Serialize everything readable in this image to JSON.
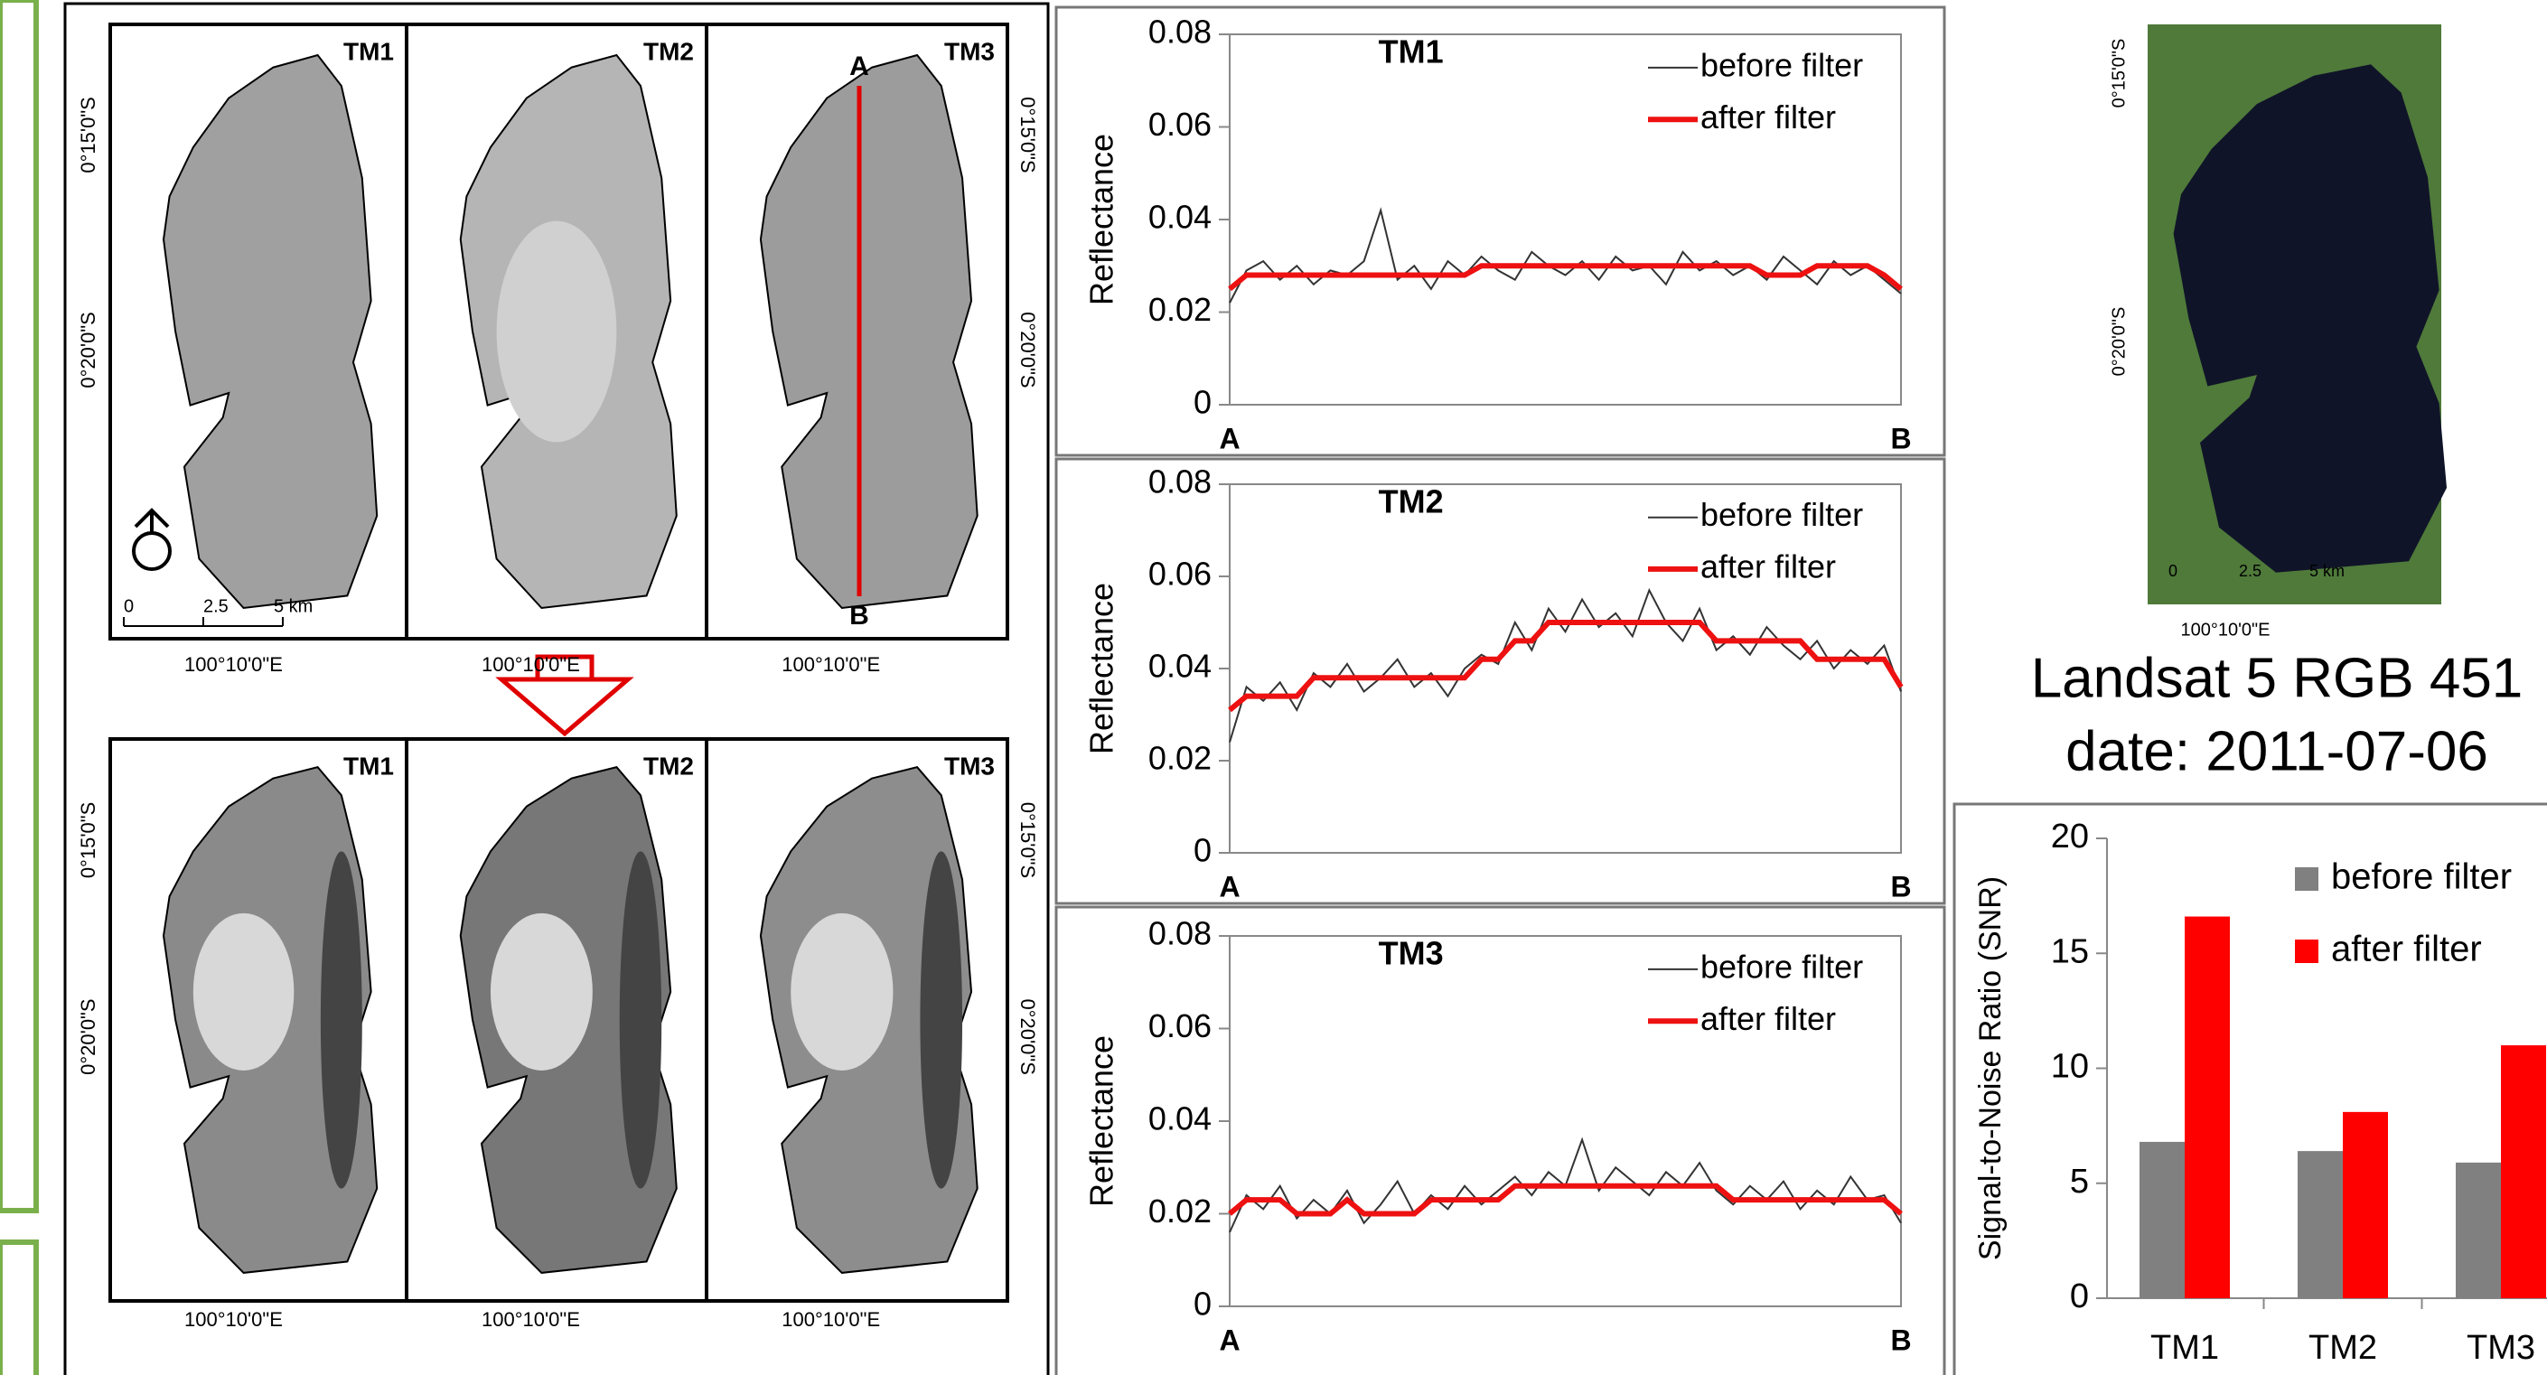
{
  "maps": {
    "panels": [
      "TM1",
      "TM2",
      "TM3"
    ],
    "profile_ends": [
      "A",
      "B"
    ],
    "scale": [
      "0",
      "2.5",
      "5 km"
    ],
    "lon": "100°10'0\"E",
    "lat": [
      "0°15'0\"S",
      "0°20'0\"S"
    ]
  },
  "satellite": {
    "caption": [
      "Landsat 5 RGB 451",
      "date: 2011-07-06"
    ]
  },
  "chart_data": [
    {
      "type": "line",
      "title": "TM1",
      "y_label": "Reflectance",
      "categories": [
        "A",
        null,
        null,
        null,
        null,
        null,
        null,
        null,
        null,
        null,
        null,
        null,
        null,
        null,
        null,
        null,
        null,
        null,
        null,
        null,
        null,
        null,
        null,
        null,
        null,
        null,
        null,
        null,
        null,
        null,
        null,
        null,
        null,
        null,
        null,
        null,
        null,
        null,
        null,
        null,
        "B"
      ],
      "category_color": "#e00000",
      "ylim": [
        0,
        0.08
      ],
      "yticks": [
        0,
        0.02,
        0.04,
        0.06,
        0.08
      ],
      "series": [
        {
          "name": "before filter",
          "color": "#333333",
          "values": [
            0.022,
            0.029,
            0.031,
            0.027,
            0.03,
            0.026,
            0.029,
            0.028,
            0.031,
            0.042,
            0.027,
            0.03,
            0.025,
            0.031,
            0.028,
            0.032,
            0.029,
            0.027,
            0.033,
            0.03,
            0.028,
            0.031,
            0.027,
            0.032,
            0.029,
            0.03,
            0.026,
            0.033,
            0.029,
            0.031,
            0.028,
            0.03,
            0.027,
            0.032,
            0.029,
            0.026,
            0.031,
            0.028,
            0.03,
            0.027,
            0.024
          ]
        },
        {
          "name": "after filter",
          "color": "#ee1111",
          "values": [
            0.025,
            0.028,
            0.028,
            0.028,
            0.028,
            0.028,
            0.028,
            0.028,
            0.028,
            0.028,
            0.028,
            0.028,
            0.028,
            0.028,
            0.028,
            0.03,
            0.03,
            0.03,
            0.03,
            0.03,
            0.03,
            0.03,
            0.03,
            0.03,
            0.03,
            0.03,
            0.03,
            0.03,
            0.03,
            0.03,
            0.03,
            0.03,
            0.028,
            0.028,
            0.028,
            0.03,
            0.03,
            0.03,
            0.03,
            0.028,
            0.025
          ]
        }
      ]
    },
    {
      "type": "line",
      "title": "TM2",
      "y_label": "Reflectance",
      "categories": [
        "A",
        null,
        null,
        null,
        null,
        null,
        null,
        null,
        null,
        null,
        null,
        null,
        null,
        null,
        null,
        null,
        null,
        null,
        null,
        null,
        null,
        null,
        null,
        null,
        null,
        null,
        null,
        null,
        null,
        null,
        null,
        null,
        null,
        null,
        null,
        null,
        null,
        null,
        null,
        null,
        "B"
      ],
      "category_color": "#e00000",
      "ylim": [
        0,
        0.08
      ],
      "yticks": [
        0,
        0.02,
        0.04,
        0.06,
        0.08
      ],
      "series": [
        {
          "name": "before filter",
          "color": "#333333",
          "values": [
            0.024,
            0.036,
            0.033,
            0.037,
            0.031,
            0.039,
            0.036,
            0.041,
            0.035,
            0.038,
            0.042,
            0.036,
            0.039,
            0.034,
            0.04,
            0.043,
            0.041,
            0.05,
            0.044,
            0.053,
            0.048,
            0.055,
            0.049,
            0.052,
            0.047,
            0.057,
            0.05,
            0.046,
            0.053,
            0.044,
            0.047,
            0.043,
            0.049,
            0.045,
            0.042,
            0.046,
            0.04,
            0.044,
            0.041,
            0.045,
            0.035
          ]
        },
        {
          "name": "after filter",
          "color": "#ee1111",
          "values": [
            0.031,
            0.034,
            0.034,
            0.034,
            0.034,
            0.038,
            0.038,
            0.038,
            0.038,
            0.038,
            0.038,
            0.038,
            0.038,
            0.038,
            0.038,
            0.042,
            0.042,
            0.046,
            0.046,
            0.05,
            0.05,
            0.05,
            0.05,
            0.05,
            0.05,
            0.05,
            0.05,
            0.05,
            0.05,
            0.046,
            0.046,
            0.046,
            0.046,
            0.046,
            0.046,
            0.042,
            0.042,
            0.042,
            0.042,
            0.042,
            0.036
          ]
        }
      ]
    },
    {
      "type": "line",
      "title": "TM3",
      "y_label": "Reflectance",
      "categories": [
        "A",
        null,
        null,
        null,
        null,
        null,
        null,
        null,
        null,
        null,
        null,
        null,
        null,
        null,
        null,
        null,
        null,
        null,
        null,
        null,
        null,
        null,
        null,
        null,
        null,
        null,
        null,
        null,
        null,
        null,
        null,
        null,
        null,
        null,
        null,
        null,
        null,
        null,
        null,
        null,
        "B"
      ],
      "category_color": "#e00000",
      "ylim": [
        0,
        0.08
      ],
      "yticks": [
        0,
        0.02,
        0.04,
        0.06,
        0.08
      ],
      "series": [
        {
          "name": "before filter",
          "color": "#333333",
          "values": [
            0.016,
            0.024,
            0.021,
            0.026,
            0.019,
            0.023,
            0.02,
            0.025,
            0.018,
            0.022,
            0.027,
            0.02,
            0.024,
            0.021,
            0.026,
            0.022,
            0.025,
            0.028,
            0.024,
            0.029,
            0.026,
            0.036,
            0.025,
            0.03,
            0.027,
            0.024,
            0.029,
            0.026,
            0.031,
            0.025,
            0.022,
            0.026,
            0.023,
            0.027,
            0.021,
            0.025,
            0.022,
            0.028,
            0.023,
            0.024,
            0.018
          ]
        },
        {
          "name": "after filter",
          "color": "#ee1111",
          "values": [
            0.02,
            0.023,
            0.023,
            0.023,
            0.02,
            0.02,
            0.02,
            0.023,
            0.02,
            0.02,
            0.02,
            0.02,
            0.023,
            0.023,
            0.023,
            0.023,
            0.023,
            0.026,
            0.026,
            0.026,
            0.026,
            0.026,
            0.026,
            0.026,
            0.026,
            0.026,
            0.026,
            0.026,
            0.026,
            0.026,
            0.023,
            0.023,
            0.023,
            0.023,
            0.023,
            0.023,
            0.023,
            0.023,
            0.023,
            0.023,
            0.02
          ]
        }
      ]
    },
    {
      "type": "bar",
      "y_label": "Signal-to-Noise Ratio (SNR)",
      "categories": [
        "TM1",
        "TM2",
        "TM3"
      ],
      "ylim": [
        0,
        20
      ],
      "yticks": [
        0,
        5,
        10,
        15,
        20
      ],
      "series": [
        {
          "name": "before filter",
          "color": "#808080",
          "values": [
            6.8,
            6.4,
            5.9
          ]
        },
        {
          "name": "after filter",
          "color": "#ff0000",
          "values": [
            16.6,
            8.1,
            11.0
          ]
        }
      ]
    }
  ]
}
